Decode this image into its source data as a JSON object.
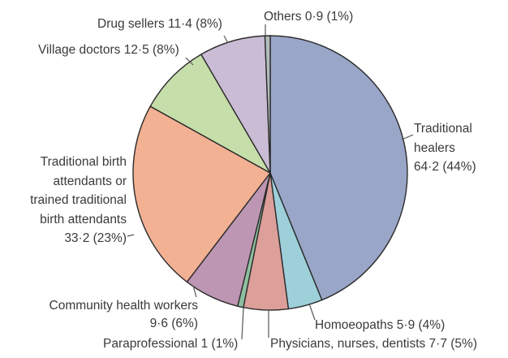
{
  "chart_data": {
    "type": "pie",
    "title": "",
    "unit_note": "values with percentage share",
    "slices": [
      {
        "name": "Traditional healers",
        "value": 64.2,
        "percent": 44,
        "color": "#9aa6c8",
        "label_lines": [
          "Traditional",
          "healers",
          "64·2 (44%)"
        ]
      },
      {
        "name": "Homoeopaths",
        "value": 5.9,
        "percent": 4,
        "color": "#9ed0da",
        "label_lines": [
          "Homoeopaths 5·9 (4%)"
        ]
      },
      {
        "name": "Physicians, nurses, dentists",
        "value": 7.7,
        "percent": 5,
        "color": "#dc9f9a",
        "label_lines": [
          "Physicians, nurses, dentists 7·7 (5%)"
        ]
      },
      {
        "name": "Paraprofessional",
        "value": 1,
        "percent": 1,
        "color": "#8fbf9f",
        "label_lines": [
          "Paraprofessional 1 (1%)"
        ]
      },
      {
        "name": "Community health workers",
        "value": 9.6,
        "percent": 6,
        "color": "#bd96b3",
        "label_lines": [
          "Community health workers",
          "9·6 (6%)"
        ]
      },
      {
        "name": "Traditional birth attendants or trained traditional birth attendants",
        "value": 33.2,
        "percent": 23,
        "color": "#f2b193",
        "label_lines": [
          "Traditional birth",
          "attendants or",
          "trained traditional",
          "birth attendants",
          "33·2 (23%)"
        ]
      },
      {
        "name": "Village doctors",
        "value": 12.5,
        "percent": 8,
        "color": "#c6deaa",
        "label_lines": [
          "Village doctors 12·5 (8%)"
        ]
      },
      {
        "name": "Drug sellers",
        "value": 11.4,
        "percent": 8,
        "color": "#cabcd4",
        "label_lines": [
          "Drug sellers 11·4 (8%)"
        ]
      },
      {
        "name": "Others",
        "value": 0.9,
        "percent": 1,
        "color": "#b2bcbc",
        "label_lines": [
          "Others 0·9 (1%)"
        ]
      }
    ]
  }
}
